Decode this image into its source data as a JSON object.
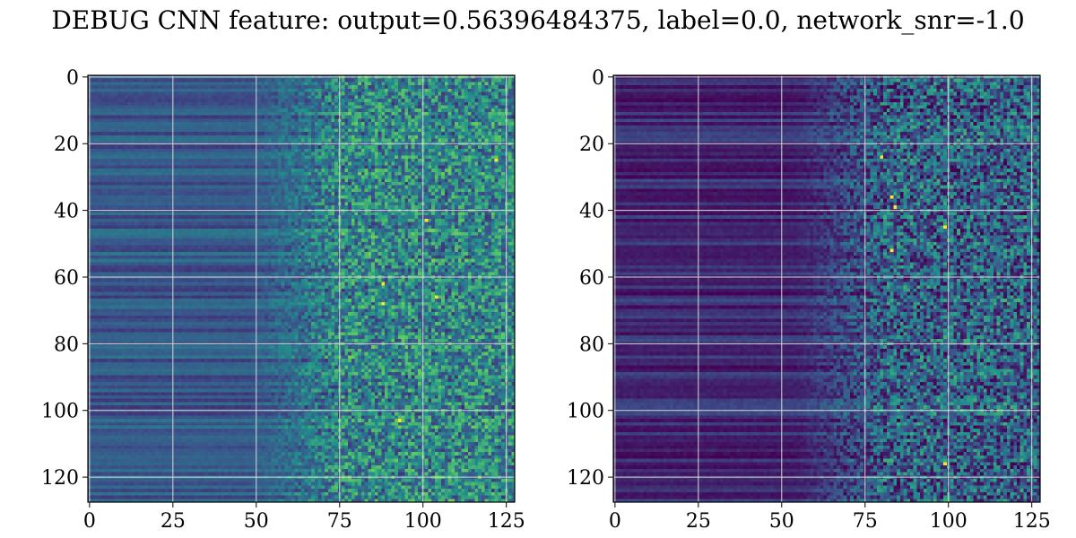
{
  "figure": {
    "title": "DEBUG CNN feature: output=0.56396484375, label=0.0, network_snr=-1.0"
  },
  "colormap": [
    "#440154",
    "#3b528b",
    "#21918c",
    "#5ec962",
    "#fde725"
  ],
  "grid_color": "#d9d9d9",
  "chart_data": [
    {
      "type": "heatmap",
      "title": "",
      "xlabel": "",
      "ylabel": "",
      "xlim": [
        0,
        128
      ],
      "ylim": [
        128,
        0
      ],
      "xticks": [
        0,
        25,
        50,
        75,
        100,
        125
      ],
      "yticks": [
        0,
        20,
        40,
        60,
        80,
        100,
        120
      ],
      "grid": true,
      "rows": 128,
      "cols": 128,
      "pattern": {
        "left_band_mean": 0.28,
        "transition_col": 62,
        "right_band_mean": 0.38,
        "right_band_spread": 0.35,
        "hot_spots": [
          [
            25,
            122
          ],
          [
            43,
            101
          ],
          [
            62,
            88
          ],
          [
            68,
            88
          ],
          [
            103,
            93
          ],
          [
            66,
            104
          ]
        ]
      }
    },
    {
      "type": "heatmap",
      "title": "",
      "xlabel": "",
      "ylabel": "",
      "xlim": [
        0,
        128
      ],
      "ylim": [
        128,
        0
      ],
      "xticks": [
        0,
        25,
        50,
        75,
        100,
        125
      ],
      "yticks": [
        0,
        20,
        40,
        60,
        80,
        100,
        120
      ],
      "grid": true,
      "rows": 128,
      "cols": 128,
      "pattern": {
        "left_band_mean": 0.12,
        "transition_col": 68,
        "right_band_mean": 0.22,
        "right_band_spread": 0.38,
        "hot_spots": [
          [
            24,
            80
          ],
          [
            36,
            83
          ],
          [
            39,
            84
          ],
          [
            45,
            99
          ],
          [
            52,
            83
          ],
          [
            116,
            99
          ]
        ]
      }
    }
  ]
}
